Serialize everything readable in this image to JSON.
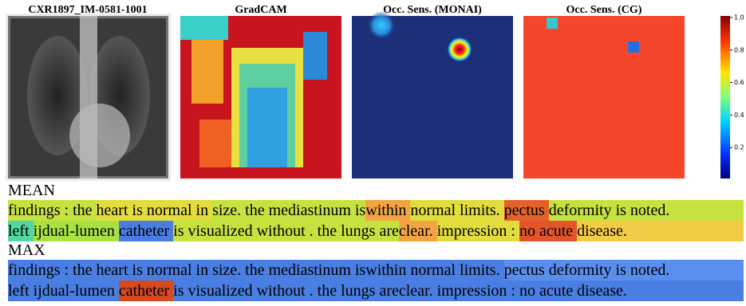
{
  "panels": [
    {
      "title": "CXR1897_IM-0581-1001"
    },
    {
      "title": "GradCAM"
    },
    {
      "title": "Occ. Sens. (MONAI)"
    },
    {
      "title": "Occ. Sens. (CG)"
    }
  ],
  "colorbar": {
    "ticks": [
      "1.0",
      "0.8",
      "0.6",
      "0.4",
      "0.2"
    ]
  },
  "sections": [
    {
      "label": "MEAN",
      "lines": [
        [
          {
            "text": "findings : the ",
            "color": "#c6e23e"
          },
          {
            "text": "heart is normal in ",
            "color": "#e2dc3c"
          },
          {
            "text": "size. the mediastinum is",
            "color": "#c6e23e"
          },
          {
            "text": "within ",
            "color": "#f2a442"
          },
          {
            "text": "normal limits. ",
            "color": "#e2dc3c"
          },
          {
            "text": "pectus ",
            "color": "#e2622a"
          },
          {
            "text": "deformity is noted.",
            "color": "#c6e23e"
          }
        ],
        [
          {
            "text": "left ",
            "color": "#52d6a2"
          },
          {
            "text": "ijdual-lumen ",
            "color": "#a8e242"
          },
          {
            "text": "catheter ",
            "color": "#4a7ce2"
          },
          {
            "text": "is visualized without . the lungs are",
            "color": "#c6e23e"
          },
          {
            "text": "clear. ",
            "color": "#f2a442"
          },
          {
            "text": "impression : ",
            "color": "#e2dc3c"
          },
          {
            "text": "no acute ",
            "color": "#e2552a"
          },
          {
            "text": "disease.",
            "color": "#f2cc44"
          }
        ]
      ]
    },
    {
      "label": "MAX",
      "lines": [
        [
          {
            "text": "findings : the heart is normal in size. the mediastinum iswithin normal limits. ",
            "color": "#4a7ee2"
          },
          {
            "text": "pectus deformity is noted.",
            "color": "#5a8eee"
          }
        ],
        [
          {
            "text": "left ijdual-lumen ",
            "color": "#4a7ee2"
          },
          {
            "text": "catheter ",
            "color": "#d64a20"
          },
          {
            "text": "is visualized without . the lungs areclear. impression : no acute disease.",
            "color": "#4a7ee2"
          }
        ]
      ]
    }
  ]
}
